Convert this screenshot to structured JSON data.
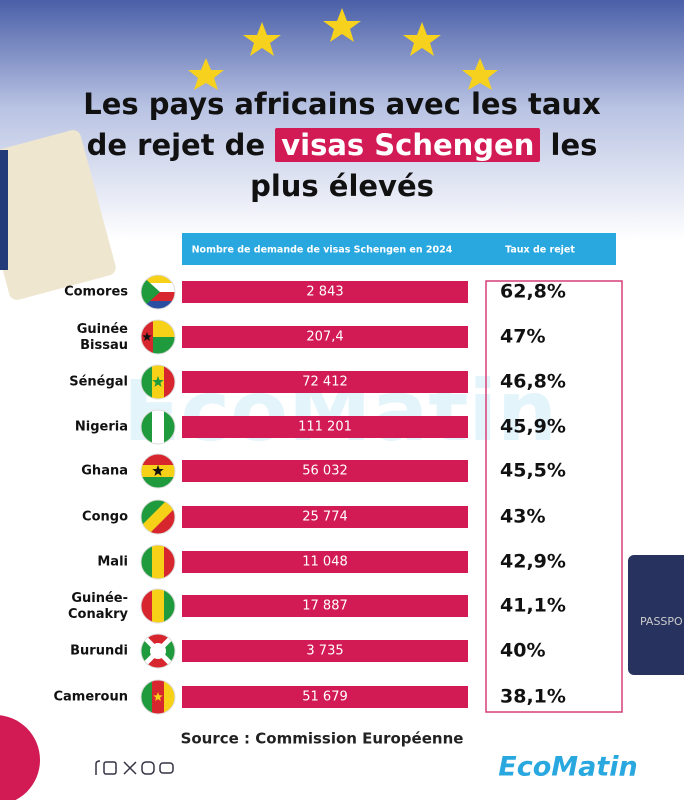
{
  "title": {
    "line1": "Les pays africains avec les taux",
    "line2_start": "de rejet de",
    "highlight": "visas Schengen",
    "line2_end": "les",
    "line3": "plus élevés"
  },
  "table": {
    "headers": [
      "Nombre de demande de visas Schengen en 2024",
      "Taux de rejet"
    ],
    "rows": [
      [
        "Comores",
        "2 843",
        "62,8%"
      ],
      [
        "Guinée Bissau",
        "207,4",
        "47%"
      ],
      [
        "Sénégal",
        "72 412",
        "46,8%"
      ],
      [
        "Nigeria",
        "111 201",
        "45,9%"
      ],
      [
        "Ghana",
        "56 032",
        "45,5%"
      ],
      [
        "Congo",
        "25 774",
        "43%"
      ],
      [
        "Mali",
        "11 048",
        "42,9%"
      ],
      [
        "Guinée-Conakry",
        "17 887",
        "41,1%"
      ],
      [
        "Burundi",
        "3 735",
        "40%"
      ],
      [
        "Cameroun",
        "51 679",
        "38,1%"
      ]
    ]
  },
  "source": "Source : Commission Européenne",
  "brand": "EcoMatin"
}
